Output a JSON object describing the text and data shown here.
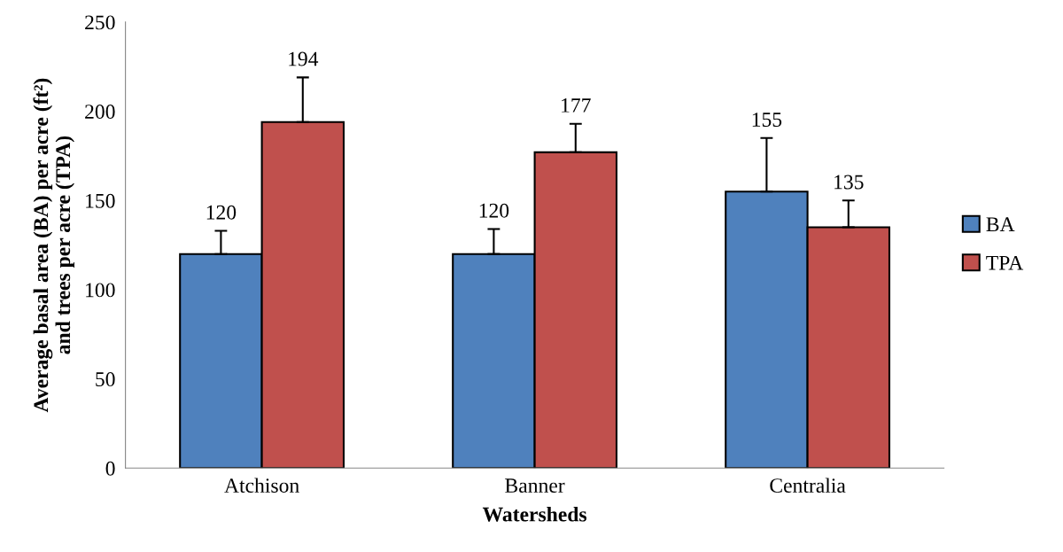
{
  "chart_data": {
    "type": "bar",
    "xlabel": "Watersheds",
    "ylabel": "Average basal area (BA) per acre (ft²)\nand trees per acre (TPA)",
    "categories": [
      "Atchison",
      "Banner",
      "Centralia"
    ],
    "series": [
      {
        "name": "BA",
        "color": "#4f81bd",
        "values": [
          120,
          120,
          155
        ],
        "errors": [
          13,
          14,
          30
        ]
      },
      {
        "name": "TPA",
        "color": "#c0504d",
        "values": [
          194,
          177,
          135
        ],
        "errors": [
          25,
          16,
          15
        ]
      }
    ],
    "ylim": [
      0,
      250
    ],
    "yticks": [
      0,
      50,
      100,
      150,
      200,
      250
    ],
    "data_labels": true,
    "legend": "right",
    "grid": false
  }
}
